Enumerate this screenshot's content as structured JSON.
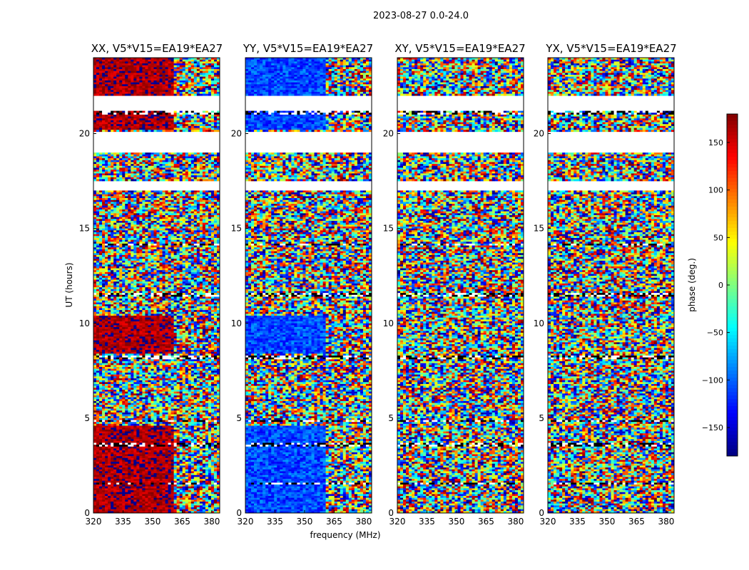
{
  "figure": {
    "suptitle": "2023-08-27 0.0-24.0",
    "xlabel": "frequency (MHz)",
    "ylabel": "UT (hours)"
  },
  "chart_data": {
    "type": "heatmap",
    "panels": [
      {
        "title": "XX, V5*V15=EA19*EA27",
        "dominant_phase_deg": 165,
        "spread_deg": 25
      },
      {
        "title": "YY, V5*V15=EA19*EA27",
        "dominant_phase_deg": -110,
        "spread_deg": 30
      },
      {
        "title": "XY, V5*V15=EA19*EA27",
        "dominant_phase_deg": -40,
        "spread_deg": 180
      },
      {
        "title": "YX, V5*V15=EA19*EA27",
        "dominant_phase_deg": -60,
        "spread_deg": 180
      }
    ],
    "x": {
      "label": "frequency (MHz)",
      "range": [
        320,
        384
      ],
      "ticks": [
        320,
        335,
        350,
        365,
        380
      ]
    },
    "y": {
      "label": "UT (hours)",
      "range": [
        0,
        24
      ],
      "ticks": [
        0,
        5,
        10,
        15,
        20
      ]
    },
    "colorbar": {
      "label": "phase (deg.)",
      "range": [
        -180,
        180
      ],
      "ticks": [
        -150,
        -100,
        -50,
        0,
        50,
        100,
        150
      ],
      "colormap": "jet"
    },
    "flagged_ut_hours": [
      [
        21.0,
        21.2
      ],
      [
        20.1,
        19.7
      ],
      [
        19.7,
        19.0
      ],
      [
        17.5,
        17.0
      ],
      [
        14.2,
        14.05
      ],
      [
        11.55,
        11.45
      ],
      [
        8.3,
        8.15
      ],
      [
        7.55,
        7.45
      ],
      [
        6.45,
        6.35
      ],
      [
        4.9,
        4.8
      ],
      [
        3.65,
        3.5
      ],
      [
        1.6,
        1.5
      ],
      [
        0.45,
        0.35
      ]
    ],
    "blank_ut_hours": [
      [
        21.2,
        22.0
      ],
      [
        19.0,
        20.1
      ],
      [
        17.0,
        17.5
      ]
    ]
  }
}
